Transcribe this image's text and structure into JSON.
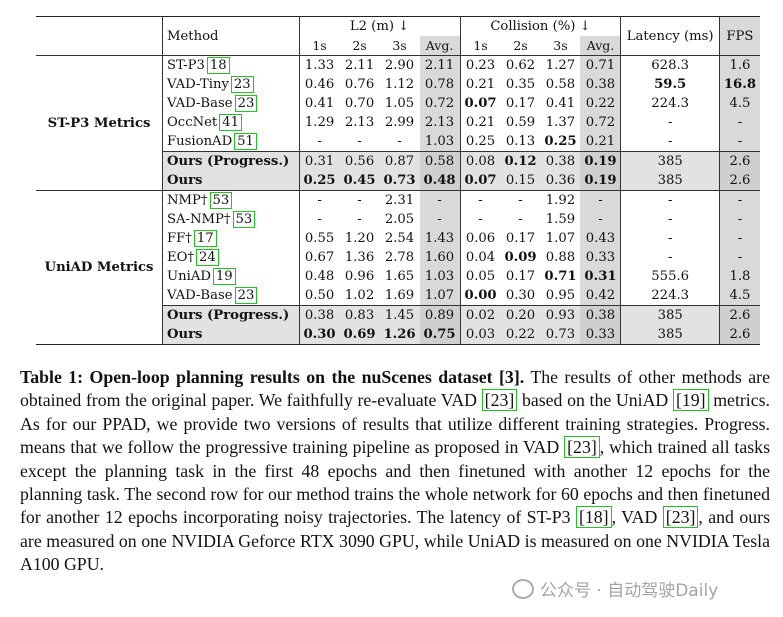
{
  "header": {
    "method": "Method",
    "l2": "L2 (m) ↓",
    "collision": "Collision (%) ↓",
    "latency": "Latency (ms)",
    "fps": "FPS",
    "sub": [
      "1s",
      "2s",
      "3s",
      "Avg.",
      "1s",
      "2s",
      "3s",
      "Avg."
    ]
  },
  "groups": [
    {
      "label": "ST-P3 Metrics",
      "rows": [
        {
          "name": "ST-P3",
          "cite": "18",
          "vals": [
            "1.33",
            "2.11",
            "2.90",
            "2.11",
            "0.23",
            "0.62",
            "1.27",
            "0.71",
            "628.3",
            "1.6"
          ],
          "bold": []
        },
        {
          "name": "VAD-Tiny",
          "cite": "23",
          "vals": [
            "0.46",
            "0.76",
            "1.12",
            "0.78",
            "0.21",
            "0.35",
            "0.58",
            "0.38",
            "59.5",
            "16.8"
          ],
          "bold": [
            8,
            9
          ]
        },
        {
          "name": "VAD-Base",
          "cite": "23",
          "vals": [
            "0.41",
            "0.70",
            "1.05",
            "0.72",
            "0.07",
            "0.17",
            "0.41",
            "0.22",
            "224.3",
            "4.5"
          ],
          "bold": [
            4
          ]
        },
        {
          "name": "OccNet",
          "cite": "41",
          "vals": [
            "1.29",
            "2.13",
            "2.99",
            "2.13",
            "0.21",
            "0.59",
            "1.37",
            "0.72",
            "-",
            "-"
          ],
          "bold": []
        },
        {
          "name": "FusionAD",
          "cite": "51",
          "vals": [
            "-",
            "-",
            "-",
            "1.03",
            "0.25",
            "0.13",
            "0.25",
            "0.21",
            "-",
            "-"
          ],
          "bold": [
            6
          ]
        },
        {
          "name": "Ours (Progress.)",
          "cite": "",
          "vals": [
            "0.31",
            "0.56",
            "0.87",
            "0.58",
            "0.08",
            "0.12",
            "0.38",
            "0.19",
            "385",
            "2.6"
          ],
          "bold": [
            5,
            7
          ],
          "ours": true
        },
        {
          "name": "Ours",
          "cite": "",
          "vals": [
            "0.25",
            "0.45",
            "0.73",
            "0.48",
            "0.07",
            "0.15",
            "0.36",
            "0.19",
            "385",
            "2.6"
          ],
          "bold": [
            0,
            1,
            2,
            3,
            4,
            7
          ],
          "ours": true
        }
      ]
    },
    {
      "label": "UniAD Metrics",
      "rows": [
        {
          "name": "NMP†",
          "cite": "53",
          "vals": [
            "-",
            "-",
            "2.31",
            "-",
            "-",
            "-",
            "1.92",
            "-",
            "-",
            "-"
          ],
          "bold": []
        },
        {
          "name": "SA-NMP†",
          "cite": "53",
          "vals": [
            "-",
            "-",
            "2.05",
            "-",
            "-",
            "-",
            "1.59",
            "-",
            "-",
            "-"
          ],
          "bold": []
        },
        {
          "name": "FF†",
          "cite": "17",
          "vals": [
            "0.55",
            "1.20",
            "2.54",
            "1.43",
            "0.06",
            "0.17",
            "1.07",
            "0.43",
            "-",
            "-"
          ],
          "bold": []
        },
        {
          "name": "EO†",
          "cite": "24",
          "vals": [
            "0.67",
            "1.36",
            "2.78",
            "1.60",
            "0.04",
            "0.09",
            "0.88",
            "0.33",
            "-",
            "-"
          ],
          "bold": [
            5
          ]
        },
        {
          "name": "UniAD",
          "cite": "19",
          "vals": [
            "0.48",
            "0.96",
            "1.65",
            "1.03",
            "0.05",
            "0.17",
            "0.71",
            "0.31",
            "555.6",
            "1.8"
          ],
          "bold": [
            6,
            7
          ]
        },
        {
          "name": "VAD-Base",
          "cite": "23",
          "vals": [
            "0.50",
            "1.02",
            "1.69",
            "1.07",
            "0.00",
            "0.30",
            "0.95",
            "0.42",
            "224.3",
            "4.5"
          ],
          "bold": [
            4
          ]
        },
        {
          "name": "Ours (Progress.)",
          "cite": "",
          "vals": [
            "0.38",
            "0.83",
            "1.45",
            "0.89",
            "0.02",
            "0.20",
            "0.93",
            "0.38",
            "385",
            "2.6"
          ],
          "bold": [],
          "ours": true
        },
        {
          "name": "Ours",
          "cite": "",
          "vals": [
            "0.30",
            "0.69",
            "1.26",
            "0.75",
            "0.03",
            "0.22",
            "0.73",
            "0.33",
            "385",
            "2.6"
          ],
          "bold": [
            0,
            1,
            2,
            3
          ],
          "ours": true
        }
      ]
    }
  ],
  "caption": {
    "title": "Table 1: Open-loop planning results on the nuScenes dataset [3].",
    "p1": " The results of other methods are obtained from the original paper. We faithfully re-evaluate VAD ",
    "r1": "[23]",
    "p2": " based on the UniAD ",
    "r2": "[19]",
    "p3": " metrics. As for our PPAD, we provide two versions of results that utilize different training strategies. Progress. means that we follow the progressive training pipeline as proposed in VAD ",
    "r3": "[23]",
    "p4": ", which trained all tasks except the planning task in the first 48 epochs and then finetuned with another 12 epochs for the planning task. The second row for our method trains the whole network for 60 epochs and then finetuned for another 12 epochs incorporating noisy trajectories. The latency of ST-P3 ",
    "r4": "[18]",
    "p5": ", VAD ",
    "r5": "[23]",
    "p6": ", and ours are measured on one NVIDIA Geforce RTX 3090 GPU, while UniAD is measured on one NVIDIA Tesla A100 GPU."
  },
  "watermark": "公众号 · 自动驾驶Daily"
}
